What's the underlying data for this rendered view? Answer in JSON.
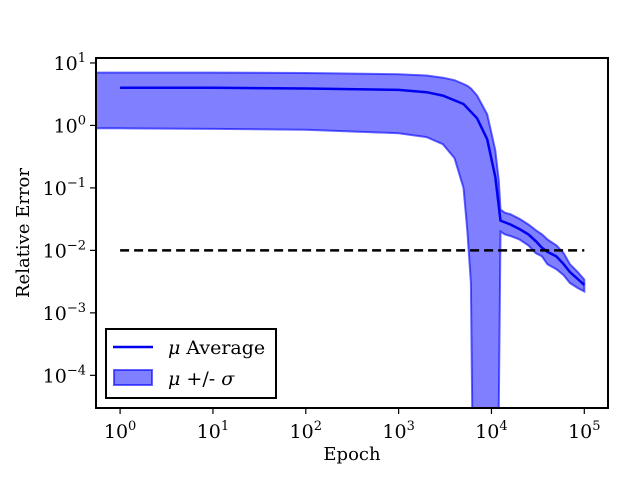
{
  "chart_data": {
    "type": "line",
    "title": "",
    "xlabel": "Epoch",
    "ylabel": "Relative Error",
    "x_scale": "log",
    "y_scale": "log",
    "xlim": [
      0.55,
      180000
    ],
    "ylim": [
      3e-05,
      12
    ],
    "grid": false,
    "x_ticks": [
      {
        "base": "10",
        "exp": "0",
        "value": 1
      },
      {
        "base": "10",
        "exp": "1",
        "value": 10
      },
      {
        "base": "10",
        "exp": "2",
        "value": 100
      },
      {
        "base": "10",
        "exp": "3",
        "value": 1000
      },
      {
        "base": "10",
        "exp": "4",
        "value": 10000
      },
      {
        "base": "10",
        "exp": "5",
        "value": 100000
      }
    ],
    "y_ticks": [
      {
        "base": "10",
        "exp": "1",
        "value": 10
      },
      {
        "base": "10",
        "exp": "0",
        "value": 1
      },
      {
        "base": "10",
        "exp": "−1",
        "value": 0.1
      },
      {
        "base": "10",
        "exp": "−2",
        "value": 0.01
      },
      {
        "base": "10",
        "exp": "−3",
        "value": 0.001
      },
      {
        "base": "10",
        "exp": "−4",
        "value": 0.0001
      }
    ],
    "series": [
      {
        "name": "μ Average",
        "color": "#0000ee",
        "x": [
          1,
          10,
          100,
          1000,
          2000,
          3000,
          5000,
          7000,
          9000,
          11000,
          12500,
          14000,
          16000,
          20000,
          25000,
          30000,
          35000,
          40000,
          50000,
          60000,
          70000,
          85000,
          100000
        ],
        "values": [
          4.0,
          4.0,
          3.9,
          3.7,
          3.4,
          3.0,
          2.2,
          1.3,
          0.6,
          0.15,
          0.03,
          0.028,
          0.026,
          0.022,
          0.018,
          0.014,
          0.011,
          0.0095,
          0.008,
          0.006,
          0.0045,
          0.0035,
          0.0028
        ]
      }
    ],
    "band": {
      "name": "μ +/- σ",
      "color": "#0000ff",
      "x": [
        0.55,
        1,
        10,
        100,
        1000,
        2000,
        3000,
        4000,
        5000,
        5500,
        6000,
        6200,
        7000,
        9000,
        11000,
        12000,
        12500,
        14000,
        16000,
        20000,
        25000,
        30000,
        35000,
        40000,
        50000,
        60000,
        70000,
        85000,
        100000
      ],
      "upper": [
        7.0,
        7.0,
        7.0,
        6.9,
        6.6,
        6.3,
        5.8,
        5.3,
        4.6,
        4.3,
        3.9,
        3.7,
        3.0,
        1.5,
        0.4,
        0.13,
        0.045,
        0.04,
        0.038,
        0.032,
        0.026,
        0.021,
        0.018,
        0.015,
        0.012,
        0.009,
        0.006,
        0.0045,
        0.0034
      ],
      "lower": [
        0.9,
        0.9,
        0.88,
        0.85,
        0.75,
        0.65,
        0.5,
        0.3,
        0.1,
        0.02,
        0.003,
        3e-05,
        3e-05,
        3e-05,
        3e-05,
        3e-05,
        0.02,
        0.018,
        0.017,
        0.015,
        0.012,
        0.009,
        0.008,
        0.006,
        0.005,
        0.004,
        0.003,
        0.0025,
        0.0022
      ]
    },
    "reference_line": {
      "y": 0.01,
      "style": "dashed",
      "color": "#000000"
    },
    "legend": {
      "placement": "bottom-left",
      "entries": [
        {
          "label_math": "μ",
          "label_text": " Average",
          "kind": "line"
        },
        {
          "label_math": "μ",
          "label_text": " +/- ",
          "label_math2": "σ",
          "kind": "patch"
        }
      ]
    }
  }
}
